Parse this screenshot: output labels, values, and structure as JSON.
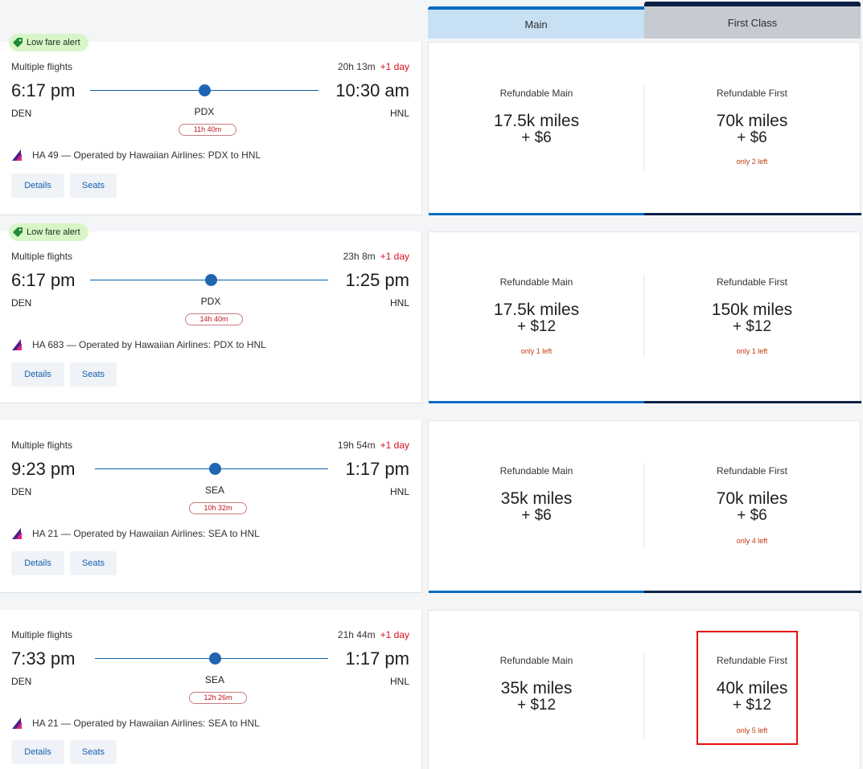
{
  "columns": {
    "main": "Main",
    "first": "First Class"
  },
  "buttons": {
    "details": "Details",
    "seats": "Seats"
  },
  "badge_label": "Low fare alert",
  "multiple_flights_label": "Multiple flights",
  "plus_day": "+1 day",
  "flights": [
    {
      "low_fare": true,
      "duration": "20h 13m",
      "depart_time": "6:17 pm",
      "arrive_time": "10:30 am",
      "origin": "DEN",
      "connection": "PDX",
      "destination": "HNL",
      "layover": "11h 40m",
      "operated": "HA 49 — Operated by Hawaiian Airlines: PDX to HNL",
      "main_label": "Refundable Main",
      "main_miles": "17.5k miles",
      "main_price": "+ $6",
      "main_left": "",
      "first_label": "Refundable First",
      "first_miles": "70k miles",
      "first_price": "+ $6",
      "first_left": "only 2 left"
    },
    {
      "low_fare": true,
      "duration": "23h 8m",
      "depart_time": "6:17 pm",
      "arrive_time": "1:25 pm",
      "origin": "DEN",
      "connection": "PDX",
      "destination": "HNL",
      "layover": "14h 40m",
      "operated": "HA 683 — Operated by Hawaiian Airlines: PDX to HNL",
      "main_label": "Refundable Main",
      "main_miles": "17.5k miles",
      "main_price": "+ $12",
      "main_left": "only 1 left",
      "first_label": "Refundable First",
      "first_miles": "150k miles",
      "first_price": "+ $12",
      "first_left": "only 1 left"
    },
    {
      "low_fare": false,
      "duration": "19h 54m",
      "depart_time": "9:23 pm",
      "arrive_time": "1:17 pm",
      "origin": "DEN",
      "connection": "SEA",
      "destination": "HNL",
      "layover": "10h 32m",
      "operated": "HA 21 — Operated by Hawaiian Airlines: SEA to HNL",
      "main_label": "Refundable Main",
      "main_miles": "35k miles",
      "main_price": "+ $6",
      "main_left": "",
      "first_label": "Refundable First",
      "first_miles": "70k miles",
      "first_price": "+ $6",
      "first_left": "only 4 left"
    },
    {
      "low_fare": false,
      "duration": "21h 44m",
      "depart_time": "7:33 pm",
      "arrive_time": "1:17 pm",
      "origin": "DEN",
      "connection": "SEA",
      "destination": "HNL",
      "layover": "12h 26m",
      "operated": "HA 21 — Operated by Hawaiian Airlines: SEA to HNL",
      "main_label": "Refundable Main",
      "main_miles": "35k miles",
      "main_price": "+ $12",
      "main_left": "",
      "first_label": "Refundable First",
      "first_miles": "40k miles",
      "first_price": "+ $12",
      "first_left": "only 5 left"
    }
  ],
  "colors": {
    "main_accent": "#0a6cc2",
    "first_accent": "#0d2147",
    "low_fare_badge": "#d8f5c8",
    "plus_day": "#d4121e",
    "highlight": "#e8100b"
  }
}
